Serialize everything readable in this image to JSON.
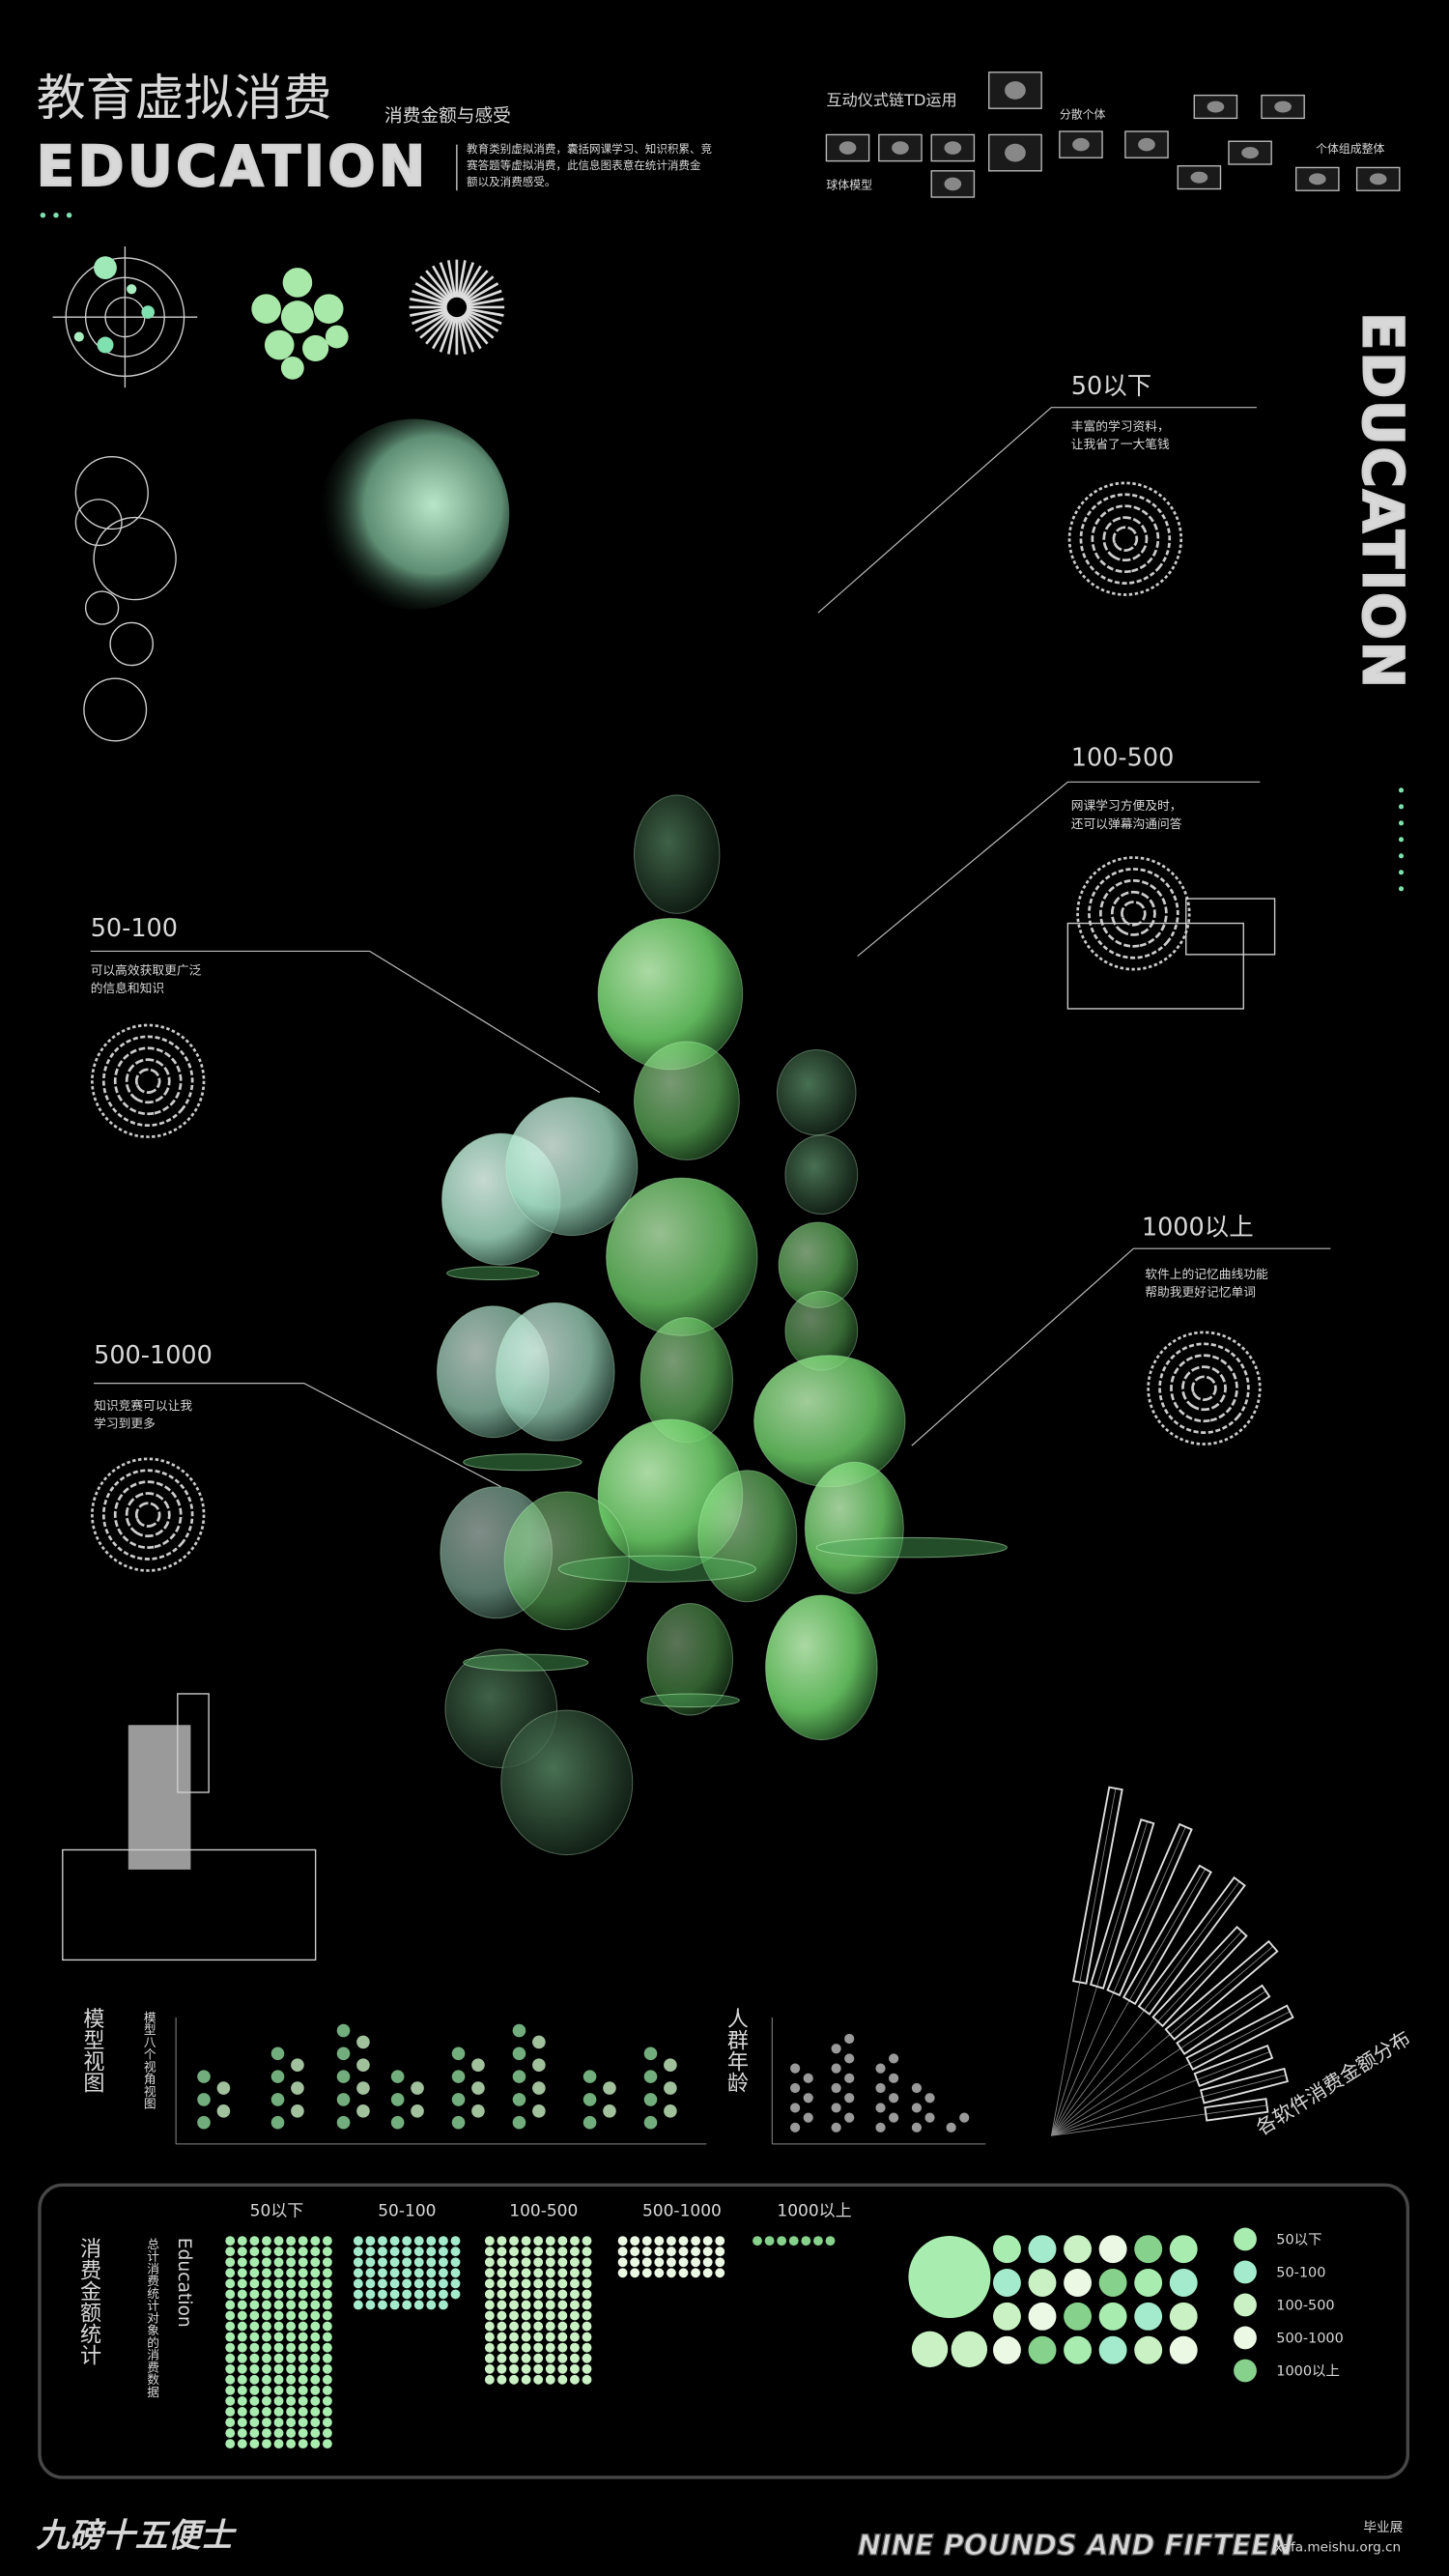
{
  "header": {
    "title": "教育虚拟消费",
    "subtitle": "消费金额与感受",
    "logo_word": "EDUCATION",
    "description": [
      "教育类别虚拟消费，囊括网课学习、知识积累、竞",
      "赛答题等虚拟消费，此信息图表意在统计消费金",
      "额以及消费感受。"
    ]
  },
  "td_panel": {
    "title": "互动仪式链TD运用",
    "labels": [
      "分散个体",
      "个体组成整体",
      "球体模型"
    ]
  },
  "side_word": "EDUCATION",
  "callouts": [
    {
      "range": "50以下",
      "text": [
        "丰富的学习资料，",
        "让我省了一大笔钱"
      ]
    },
    {
      "range": "100-500",
      "text": [
        "网课学习方便及时，",
        "还可以弹幕沟通问答"
      ]
    },
    {
      "range": "50-100",
      "text": [
        "可以高效获取更广泛",
        "的信息和知识"
      ]
    },
    {
      "range": "1000以上",
      "text": [
        "软件上的记忆曲线功能",
        "帮助我更好记忆单词"
      ]
    },
    {
      "range": "500-1000",
      "text": [
        "知识竞赛可以让我",
        "学习到更多"
      ]
    }
  ],
  "mini_charts": {
    "model_view": "模型视图",
    "model_view_note": "模型八个视角视图",
    "age": "人群年龄"
  },
  "fan_chart": {
    "title": "各软件消费金额分布",
    "values": [
      30,
      42,
      38,
      55,
      50,
      66,
      60,
      78,
      74,
      88,
      84,
      96
    ]
  },
  "stats": {
    "title": "消费金额统计",
    "subtitle": "Education",
    "note": "总计消费统计对象的消费数据",
    "categories": [
      "50以下",
      "50-100",
      "100-500",
      "500-1000",
      "1000以上"
    ],
    "dot_counts": [
      180,
      62,
      126,
      36,
      7
    ],
    "colors": [
      "#a9ecb0",
      "#a3ebcc",
      "#c9f1c4",
      "#eaf8e4",
      "#86d28c"
    ]
  },
  "footer": {
    "brand": "九磅十五便士",
    "brand_en": "NINE POUNDS AND FIFTEEN",
    "site": "xafa.meishu.org.cn",
    "tag": "毕业展"
  }
}
